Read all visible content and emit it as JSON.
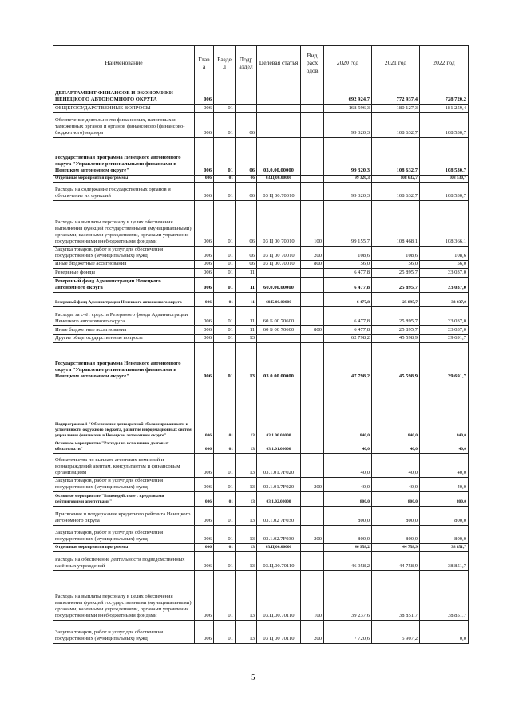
{
  "table": {
    "headers": [
      "Наименование",
      "Глав а",
      "Разде л",
      "Подр аздел",
      "Целевая статья",
      "Вид расх одов",
      "2020 год",
      "2021 год",
      "2022 год"
    ],
    "rows": [
      {
        "style": "b",
        "h": 29,
        "cells": [
          "ДЕПАРТАМЕНТ ФИНАНСОВ И ЭКОНОМИКИ НЕНЕЦКОГО АВТОНОМНОГО ОКРУГА",
          "006",
          "",
          "",
          "",
          "",
          "692 924,7",
          "772 937,4",
          "728 720,2"
        ]
      },
      {
        "style": "",
        "h": 11,
        "cells": [
          "ОБЩЕГОСУДАРСТВЕННЫЕ ВОПРОСЫ",
          "006",
          "01",
          "",
          "",
          "",
          "168 596,3",
          "180 127,3",
          "181 259,4"
        ]
      },
      {
        "style": "",
        "h": 31,
        "cells": [
          "Обеспечение деятельности финансовых, налоговых и таможенных органов и органов финансового (финансово-бюджетного) надзора",
          "006",
          "01",
          "06",
          "",
          "",
          "99 320,3",
          "108 632,7",
          "108 530,7"
        ]
      },
      {
        "style": "b",
        "h": 47,
        "cells": [
          "Государственная программа Ненецкого автономного округа \"Управление региональными финансами в Ненецком автономном округе\"",
          "006",
          "01",
          "06",
          "03.0.00.00000",
          "",
          "99 320,3",
          "108 632,7",
          "108 530,7"
        ]
      },
      {
        "style": "bs",
        "h": 9,
        "cells": [
          "Отдельные мероприятия программы",
          "006",
          "01",
          "06",
          "03.Ц.00.00000",
          "",
          "99 320,3",
          "108 632,7",
          "108 530,7"
        ]
      },
      {
        "style": "",
        "h": 23,
        "cells": [
          " Расходы на содержание государственных органов и обеспечение их функций",
          "006",
          "01",
          "06",
          "03 Ц 00.70010",
          "",
          "99 320,3",
          "108 632,7",
          "108 530,7"
        ]
      },
      {
        "style": "",
        "h": 57,
        "cells": [
          "Расходы на выплаты персоналу в целях обеспечения выполнения функций государственными (муниципальными) органами, казенными учреждениями, органами управления государственными внебюджетными фондами",
          "006",
          "01",
          "06",
          "03 Ц 00 70010",
          "100",
          "99 155,7",
          "108 468,1",
          "108 366,1"
        ]
      },
      {
        "style": "",
        "h": 17,
        "cells": [
          "Закупка товаров, работ и услуг для обеспечения государственных (муниципальных) нужд",
          "006",
          "01",
          "06",
          "03 Ц 00 70010",
          "200",
          "108,6",
          "108,6",
          "108,6"
        ]
      },
      {
        "style": "",
        "h": 10,
        "cells": [
          "Иные бюджетные ассигнования",
          "006",
          "01",
          "06",
          "03 Ц 00.70010",
          "800",
          "56,0",
          "56,0",
          "56,0"
        ]
      },
      {
        "style": "",
        "h": 11,
        "cells": [
          "Резервные фонды",
          "006",
          "01",
          "11",
          "",
          "",
          "6 477,8",
          "25 895,7",
          "33 037,0"
        ]
      },
      {
        "style": "b",
        "h": 19,
        "cells": [
          "Резервный фонд Администрации Ненецкого автономного округа",
          "006",
          "01",
          "11",
          "60.0.00.00000",
          "",
          "6 477,8",
          "25 895,7",
          "33 037,0"
        ]
      },
      {
        "style": "bs",
        "h": 18,
        "cells": [
          "Резервный фонд Администрации Ненецкого автономного округа",
          "006",
          "01",
          "11",
          "60.Б.00.00000",
          "",
          "6 477,8",
          "25 895,7",
          "33 037,0"
        ]
      },
      {
        "style": "",
        "h": 24,
        "cells": [
          " Расходы за счёт средств Резервного фонда Администрации Ненецкого автономного округа",
          "006",
          "01",
          "11",
          "60 Б 00 70600",
          "",
          "6 477,8",
          "25 895,7",
          "33 037,0"
        ]
      },
      {
        "style": "",
        "h": 11,
        "cells": [
          "Иные бюджетные ассигнования",
          "006",
          "01",
          "11",
          "60 Б 00 70600",
          "800",
          "6 477,8",
          "25 895,7",
          "33 037,0"
        ]
      },
      {
        "style": "",
        "h": 10,
        "cells": [
          "Другие общегосударственные вопросы",
          "006",
          "01",
          "13",
          "",
          "",
          "62 798,2",
          "45 598,9",
          "39 691,7"
        ]
      },
      {
        "style": "b",
        "h": 48,
        "cells": [
          "Государственная программа Ненецкого автономного округа \"Управление региональными финансами в Ненецком автономном округе\"",
          "006",
          "01",
          "13",
          "03.0.00.00000",
          "",
          "47 798,2",
          "45 598,9",
          "39 691,7"
        ]
      },
      {
        "style": "bs",
        "h": 74,
        "cells": [
          "Подпрограмма 1 \"Обеспечение долгосрочной сбалансированности и устойчивости окружного бюджета, развитие информационных систем управления финансами в Ненецком автономном округе\"",
          "006",
          "01",
          "13",
          "03.1.00.00000",
          "",
          "840,0",
          "840,0",
          "840,0"
        ]
      },
      {
        "style": "bs",
        "h": 17,
        "cells": [
          "Основное мероприятие \"Расходы на исполнение долговых обязательств\"",
          "006",
          "01",
          "13",
          "03.1.01.00000",
          "",
          "40,0",
          "40,0",
          "40,0"
        ]
      },
      {
        "style": "",
        "h": 30,
        "cells": [
          " Обязательства по выплате агентских комиссий и вознаграждений агентам, консультантам и финансовым организациям",
          "006",
          "01",
          "13",
          "03.1.01.7F020",
          "",
          "40,0",
          "40,0",
          "40,0"
        ]
      },
      {
        "style": "",
        "h": 17,
        "cells": [
          "Закупка товаров, работ и услуг для обеспечения государственных (муниципальных) нужд",
          "006",
          "01",
          "13",
          "03.1.01.7F020",
          "200",
          "40,0",
          "40,0",
          "40,0"
        ]
      },
      {
        "style": "bs",
        "h": 18,
        "cells": [
          "Основное мероприятие \"Взаимодействие с кредитными рейтинговыми агентствами\"",
          "006",
          "01",
          "13",
          "03.1.02.00000",
          "",
          "800,0",
          "800,0",
          "800,0"
        ]
      },
      {
        "style": "",
        "h": 24,
        "cells": [
          " Присвоение и поддержание кредитного рейтинга Ненецкого автономного округа",
          "006",
          "01",
          "13",
          "03.1.02 7F030",
          "",
          "800,0",
          "800,0",
          "800,0"
        ]
      },
      {
        "style": "",
        "h": 23,
        "cells": [
          "Закупка товаров, работ и услуг для обеспечения государственных (муниципальных) нужд",
          "006",
          "01",
          "13",
          "03.1.02.7F030",
          "200",
          "800,0",
          "800,0",
          "800,0"
        ]
      },
      {
        "style": "bs",
        "h": 10,
        "cells": [
          "Отдельные мероприятия программы",
          "006",
          "01",
          "13",
          "03.Ц.00.00000",
          "",
          "46 958,2",
          "44 758,9",
          "38 851,7"
        ]
      },
      {
        "style": "",
        "h": 24,
        "cells": [
          " Расходы на обеспечение деятельности подведомственных казённых учреждений",
          "006",
          "01",
          "13",
          "03.Ц.00.70110",
          "",
          "46 958,2",
          "44 758,9",
          "38 851,7"
        ]
      },
      {
        "style": "",
        "h": 62,
        "cells": [
          "Расходы на выплаты персоналу в целях обеспечения выполнения функций государственными (муниципальными) органами, казенными учреждениями, органами управления государственными внебюджетными фондами",
          "006",
          "01",
          "13",
          "03.Ц.00.70110",
          "100",
          "39 237,6",
          "38 851,7",
          "38 851,7"
        ]
      },
      {
        "style": "",
        "h": 29,
        "cells": [
          "Закупка товаров, работ и услуг для обеспечения государственных (муниципальных) нужд",
          "006",
          "01",
          "13",
          "03 Ц 00 70110",
          "200",
          "7 720,6",
          "5 907,2",
          "0,0"
        ]
      }
    ]
  },
  "page_number": "5"
}
